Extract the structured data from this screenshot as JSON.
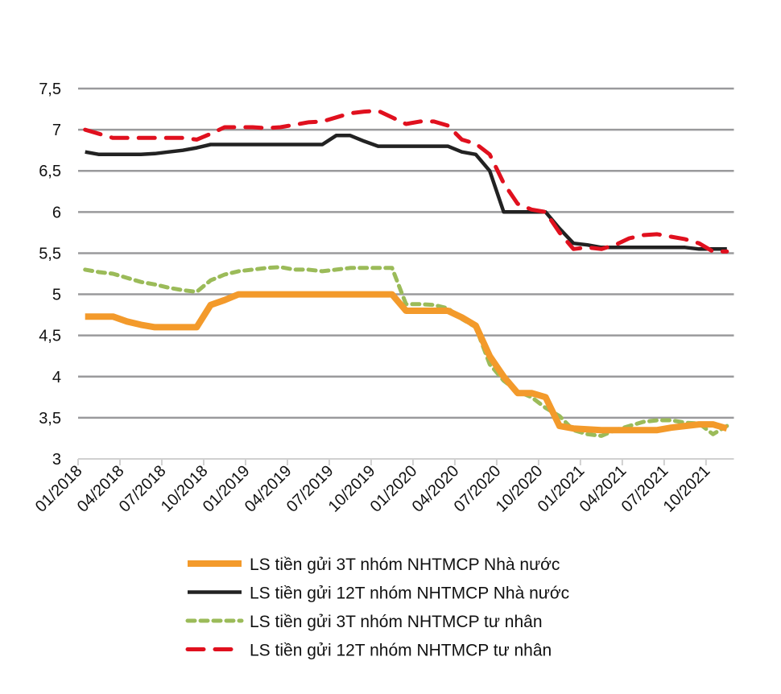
{
  "chart_data": {
    "type": "line",
    "title": "",
    "xlabel": "",
    "ylabel": "",
    "ylim": [
      3,
      7.5
    ],
    "yticks": [
      3,
      3.5,
      4,
      4.5,
      5,
      5.5,
      6,
      6.5,
      7,
      7.5
    ],
    "ytick_labels": [
      "3",
      "3,5",
      "4",
      "4,5",
      "5",
      "5,5",
      "6",
      "6,5",
      "7",
      "7,5"
    ],
    "grid": "horizontal",
    "legend_position": "bottom",
    "xtick_labels": [
      "01/2018",
      "04/2018",
      "07/2018",
      "10/2018",
      "01/2019",
      "04/2019",
      "07/2019",
      "10/2019",
      "01/2020",
      "04/2020",
      "07/2020",
      "10/2020",
      "01/2021",
      "04/2021",
      "07/2021",
      "10/2021"
    ],
    "x_frequency": "monthly, 01/2018 - 11/2021",
    "series": [
      {
        "name": "LS tiền gửi 3T nhóm NHTMCP Nhà nước",
        "color": "#F39A2B",
        "style": "solid-thick",
        "values": [
          4.73,
          4.73,
          4.73,
          4.67,
          4.63,
          4.6,
          4.6,
          4.6,
          4.6,
          4.87,
          4.93,
          5,
          5,
          5,
          5,
          5,
          5,
          5,
          5,
          5,
          5,
          5,
          5,
          4.8,
          4.8,
          4.8,
          4.8,
          4.72,
          4.62,
          4.25,
          4,
          3.8,
          3.8,
          3.75,
          3.4,
          3.37,
          3.36,
          3.35,
          3.35,
          3.35,
          3.35,
          3.35,
          3.38,
          3.4,
          3.42,
          3.42,
          3.37
        ]
      },
      {
        "name": "LS tiền gửi 12T nhóm NHTMCP Nhà nước",
        "color": "#222222",
        "style": "solid",
        "values": [
          6.73,
          6.7,
          6.7,
          6.7,
          6.7,
          6.71,
          6.73,
          6.75,
          6.78,
          6.82,
          6.82,
          6.82,
          6.82,
          6.82,
          6.82,
          6.82,
          6.82,
          6.82,
          6.93,
          6.93,
          6.86,
          6.8,
          6.8,
          6.8,
          6.8,
          6.8,
          6.8,
          6.73,
          6.7,
          6.5,
          6,
          6,
          6,
          6,
          5.8,
          5.62,
          5.6,
          5.57,
          5.57,
          5.57,
          5.57,
          5.57,
          5.57,
          5.57,
          5.55,
          5.55,
          5.55
        ]
      },
      {
        "name": "LS tiền gửi 3T nhóm NHTMCP tư nhân",
        "color": "#9BBB59",
        "style": "dotted",
        "values": [
          5.3,
          5.27,
          5.25,
          5.2,
          5.15,
          5.12,
          5.08,
          5.05,
          5.03,
          5.17,
          5.24,
          5.28,
          5.3,
          5.32,
          5.33,
          5.3,
          5.3,
          5.28,
          5.3,
          5.32,
          5.32,
          5.32,
          5.32,
          4.88,
          4.88,
          4.87,
          4.83,
          4.7,
          4.6,
          4.15,
          3.95,
          3.82,
          3.75,
          3.62,
          3.52,
          3.35,
          3.3,
          3.28,
          3.35,
          3.4,
          3.45,
          3.47,
          3.47,
          3.44,
          3.43,
          3.3,
          3.4
        ]
      },
      {
        "name": "LS tiền gửi 12T nhóm NHTMCP tư nhân",
        "color": "#E0101E",
        "style": "dashed",
        "values": [
          7,
          6.95,
          6.9,
          6.9,
          6.9,
          6.9,
          6.9,
          6.9,
          6.88,
          6.95,
          7.03,
          7.03,
          7.03,
          7.02,
          7.03,
          7.06,
          7.09,
          7.1,
          7.15,
          7.2,
          7.22,
          7.23,
          7.15,
          7.07,
          7.1,
          7.1,
          7.05,
          6.88,
          6.83,
          6.7,
          6.35,
          6.1,
          6.03,
          6,
          5.75,
          5.55,
          5.57,
          5.55,
          5.6,
          5.68,
          5.72,
          5.73,
          5.7,
          5.67,
          5.62,
          5.52,
          5.52
        ]
      }
    ]
  }
}
